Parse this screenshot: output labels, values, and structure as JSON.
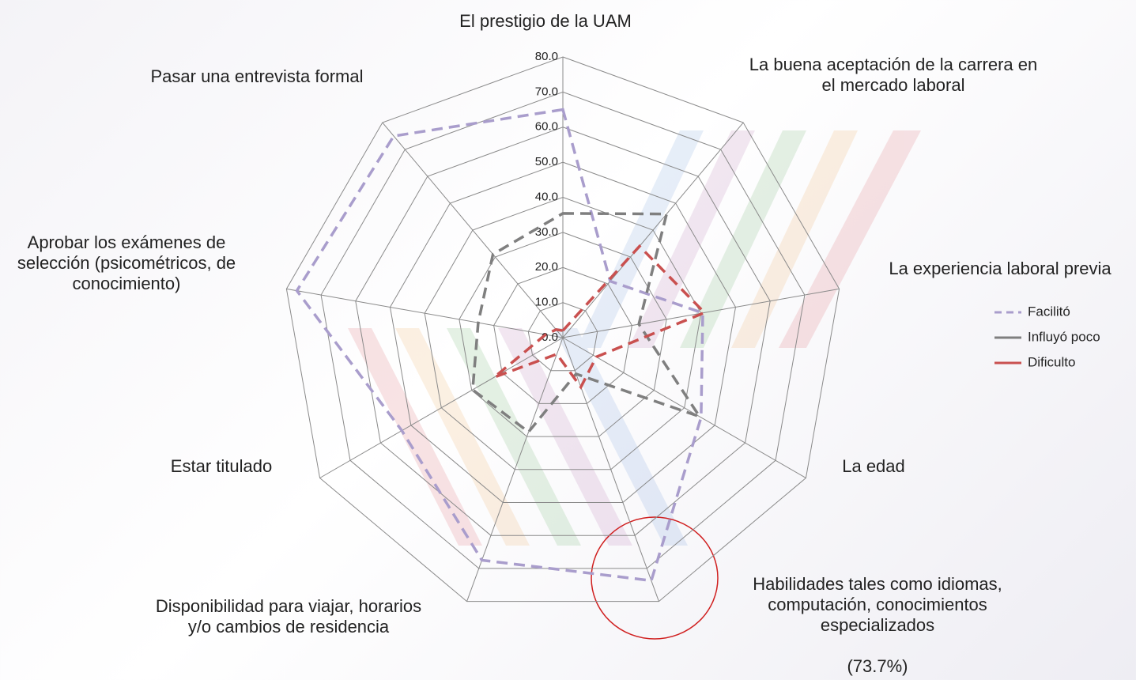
{
  "chart_data": {
    "type": "radar",
    "categories": [
      "El prestigio de la UAM",
      "La buena aceptación de la carrera en el mercado laboral",
      "La experiencia laboral previa",
      "La edad",
      "Habilidades tales como idiomas, computación, conocimientos especializados",
      "Disponibilidad para viajar, horarios y/o cambios de residencia",
      "Estar titulado",
      "Aprobar los exámenes de selección (psicométricos, de conocimiento)",
      "Pasar una entrevista formal"
    ],
    "annotations": [
      {
        "category": 4,
        "text": "(73.7%)"
      }
    ],
    "series": [
      {
        "name": "Facilitó",
        "color": "#a99dcc",
        "values": [
          65,
          21,
          40.5,
          45.5,
          73.7,
          67.5,
          53,
          77,
          75
        ]
      },
      {
        "name": "Influyó poco",
        "color": "#7f7f7f",
        "values": [
          35.4,
          46,
          22,
          45,
          11,
          28.6,
          29.7,
          24.5,
          31
        ]
      },
      {
        "name": "Dificulto",
        "color": "#c9504f",
        "values": [
          2,
          34,
          41,
          11,
          15,
          5,
          22.6,
          5,
          3
        ]
      }
    ],
    "ylim": [
      0,
      80
    ],
    "yticks": [
      {
        "value": 0,
        "label": "0.0"
      },
      {
        "value": 10,
        "label": "10.0"
      },
      {
        "value": 20,
        "label": "20.0"
      },
      {
        "value": 30,
        "label": "30.0"
      },
      {
        "value": 40,
        "label": "40.0"
      },
      {
        "value": 50,
        "label": "50.0"
      },
      {
        "value": 60,
        "label": "60.0"
      },
      {
        "value": 70,
        "label": "70.0"
      },
      {
        "value": 80,
        "label": "80.0"
      }
    ],
    "grid": true,
    "legend": "right"
  }
}
